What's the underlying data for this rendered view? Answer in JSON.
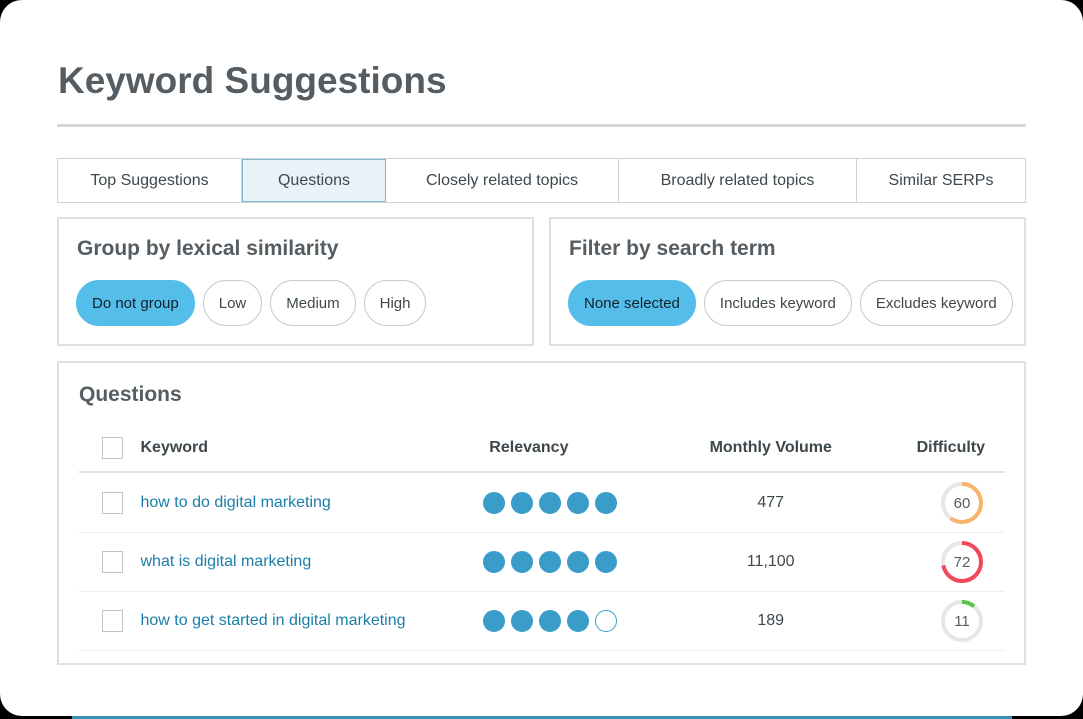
{
  "title": "Keyword Suggestions",
  "tabs": [
    {
      "label": "Top Suggestions"
    },
    {
      "label": "Questions",
      "active": true
    },
    {
      "label": "Closely related topics"
    },
    {
      "label": "Broadly related topics"
    },
    {
      "label": "Similar SERPs"
    }
  ],
  "group": {
    "heading": "Group by lexical similarity",
    "options": [
      "Do not group",
      "Low",
      "Medium",
      "High"
    ],
    "selected": "Do not group"
  },
  "filter": {
    "heading": "Filter by search term",
    "options": [
      "None selected",
      "Includes keyword",
      "Excludes keyword"
    ],
    "selected": "None selected"
  },
  "questions": {
    "heading": "Questions",
    "columns": {
      "keyword": "Keyword",
      "relevancy": "Relevancy",
      "volume": "Monthly Volume",
      "difficulty": "Difficulty"
    },
    "rows": [
      {
        "keyword": "how to do digital marketing",
        "relevancy": 5,
        "volume": "477",
        "difficulty": 60,
        "color": "#f7b36b"
      },
      {
        "keyword": "what is digital marketing",
        "relevancy": 5,
        "volume": "11,100",
        "difficulty": 72,
        "color": "#f2475a"
      },
      {
        "keyword": "how to get started in digital marketing",
        "relevancy": 4,
        "volume": "189",
        "difficulty": 11,
        "color": "#5cc548"
      }
    ]
  },
  "colors": {
    "accent": "#55bde9",
    "relevancy_dot": "#3a9cc9",
    "link": "#1a7fa8",
    "track": "#e6e6e6"
  }
}
